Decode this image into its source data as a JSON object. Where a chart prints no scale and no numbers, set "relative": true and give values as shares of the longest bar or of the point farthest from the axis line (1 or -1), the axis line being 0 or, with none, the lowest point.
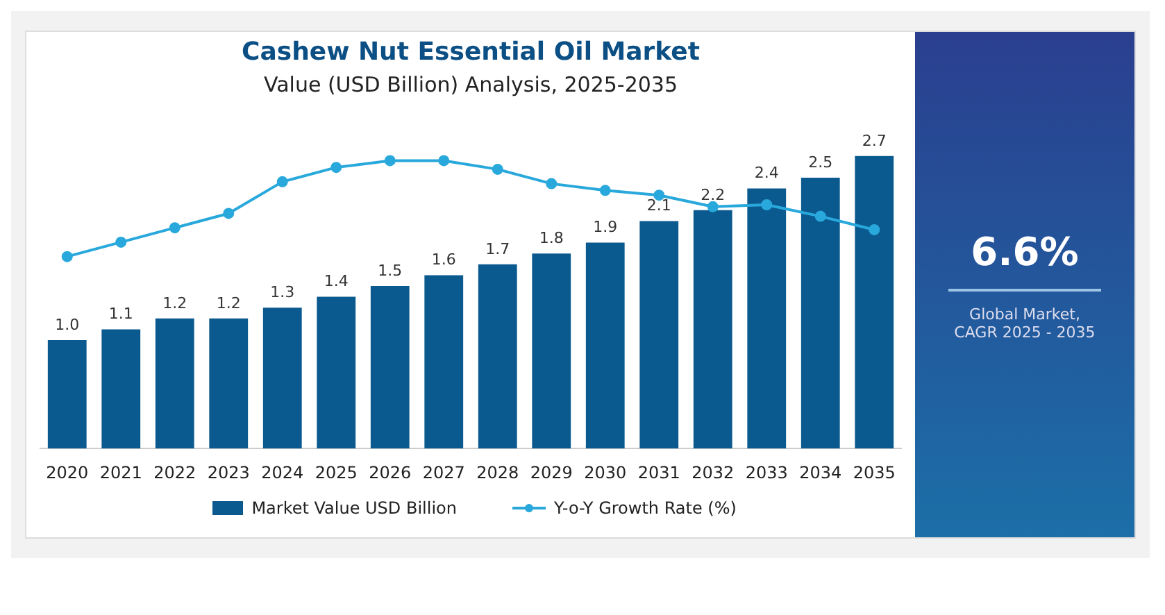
{
  "chart_data": [
    {
      "type": "bar",
      "title": "Cashew Nut Essential Oil Market",
      "subtitle": "Value (USD Billion) Analysis, 2025-2035",
      "categories": [
        "2020",
        "2021",
        "2022",
        "2023",
        "2024",
        "2025",
        "2026",
        "2027",
        "2028",
        "2029",
        "2030",
        "2031",
        "2032",
        "2033",
        "2034",
        "2035"
      ],
      "series": [
        {
          "name": "Market Value USD Billion",
          "color": "#0b5a8f",
          "values": [
            1.0,
            1.1,
            1.2,
            1.2,
            1.3,
            1.4,
            1.5,
            1.6,
            1.7,
            1.8,
            1.9,
            2.1,
            2.2,
            2.4,
            2.5,
            2.7
          ],
          "value_labels": [
            "1.0",
            "1.1",
            "1.2",
            "1.2",
            "1.3",
            "1.4",
            "1.5",
            "1.6",
            "1.7",
            "1.8",
            "1.9",
            "2.1",
            "2.2",
            "2.4",
            "2.5",
            "2.7"
          ]
        }
      ],
      "legend": "bottom",
      "grid": false,
      "tick_labels": "x",
      "annotations": [
        "6.6%",
        "Global Market, CAGR 2025 - 2035"
      ]
    },
    {
      "type": "line",
      "categories": [
        "2020",
        "2021",
        "2022",
        "2023",
        "2024",
        "2025",
        "2026",
        "2027",
        "2028",
        "2029",
        "2030",
        "2031",
        "2032",
        "2033",
        "2034",
        "2035"
      ],
      "series": [
        {
          "name": "Y-o-Y Growth Rate (%)",
          "color": "#29a8dc",
          "values": [
            0,
            0.15,
            0.3,
            0.45,
            0.78,
            0.93,
            1,
            1,
            0.91,
            0.76,
            0.69,
            0.64,
            0.52,
            0.54,
            0.42,
            0.28
          ]
        }
      ],
      "relative": true,
      "legend": "bottom",
      "marker": "circle",
      "line_style": "solid",
      "grid": false,
      "tick_labels": false
    }
  ]
}
